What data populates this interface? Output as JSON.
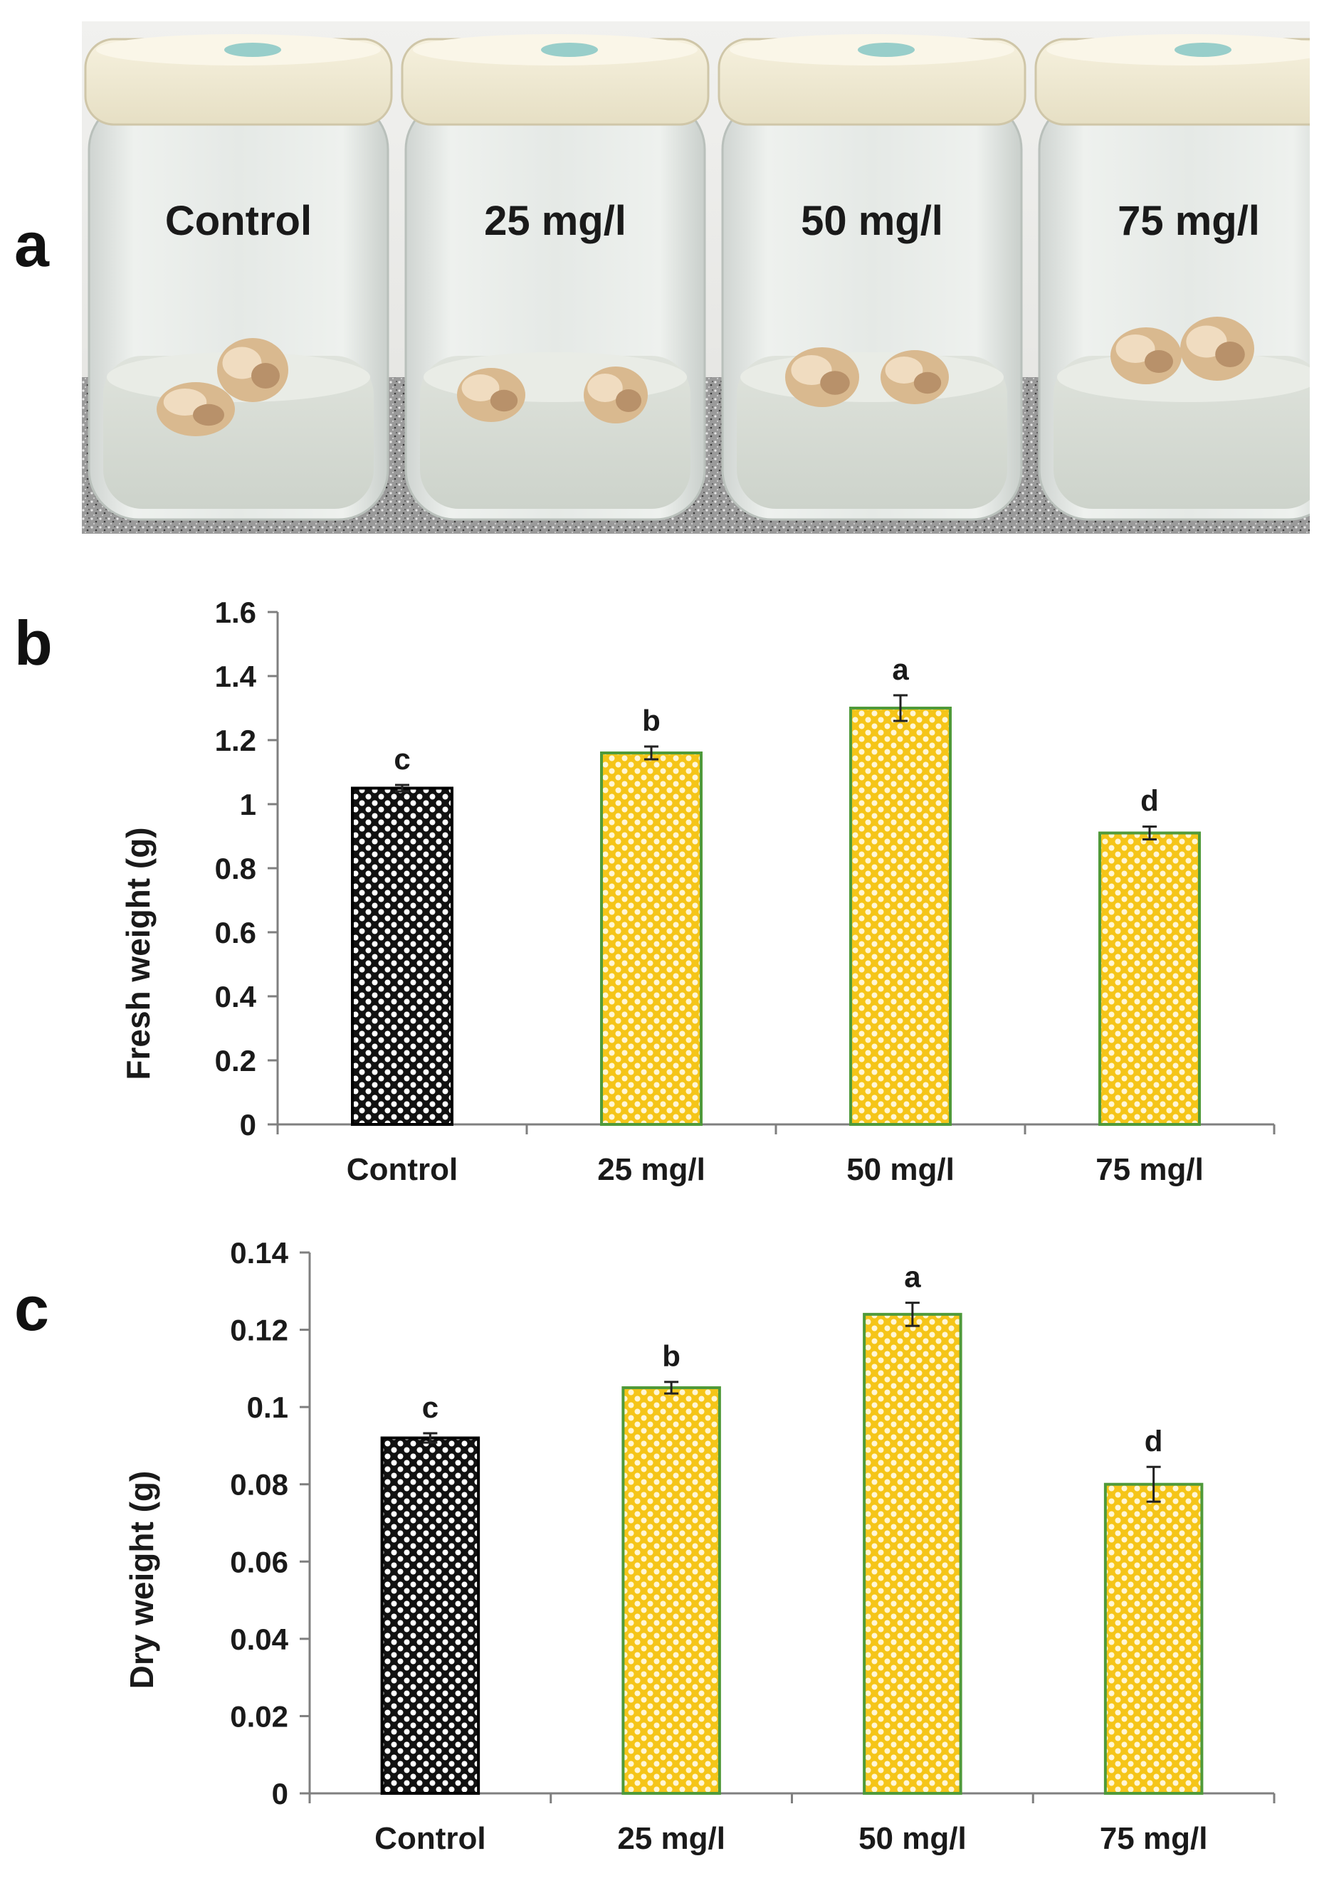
{
  "figure": {
    "panel_labels": [
      "a",
      "b",
      "c"
    ],
    "photo": {
      "jar_labels": [
        "Control",
        "25 mg/l",
        "50 mg/l",
        "75 mg/l"
      ]
    }
  },
  "colors": {
    "control_fill": "#111111",
    "treatment_fill": "#f5c518",
    "treatment_edge": "#4f9a3a",
    "axis": "#7f7f7f",
    "text": "#1a1a1a"
  },
  "chart_data": [
    {
      "type": "bar",
      "title": "",
      "xlabel": "",
      "ylabel": "Fresh weight (g)",
      "categories": [
        "Control",
        "25 mg/l",
        "50 mg/l",
        "75 mg/l"
      ],
      "values": [
        1.05,
        1.16,
        1.3,
        0.91
      ],
      "errors": [
        0.01,
        0.02,
        0.04,
        0.02
      ],
      "letters": [
        "c",
        "b",
        "a",
        "d"
      ],
      "ylim": [
        0,
        1.6
      ],
      "yticks": [
        "0",
        "0.2",
        "0.4",
        "0.6",
        "0.8",
        "1",
        "1.2",
        "1.4",
        "1.6"
      ],
      "grid": false
    },
    {
      "type": "bar",
      "title": "",
      "xlabel": "",
      "ylabel": "Dry weight (g)",
      "categories": [
        "Control",
        "25 mg/l",
        "50 mg/l",
        "75 mg/l"
      ],
      "values": [
        0.092,
        0.105,
        0.124,
        0.08
      ],
      "errors": [
        0.0012,
        0.0015,
        0.003,
        0.0045
      ],
      "letters": [
        "c",
        "b",
        "a",
        "d"
      ],
      "ylim": [
        0,
        0.14
      ],
      "yticks": [
        "0",
        "0.02",
        "0.04",
        "0.06",
        "0.08",
        "0.1",
        "0.12",
        "0.14"
      ],
      "grid": false
    }
  ]
}
